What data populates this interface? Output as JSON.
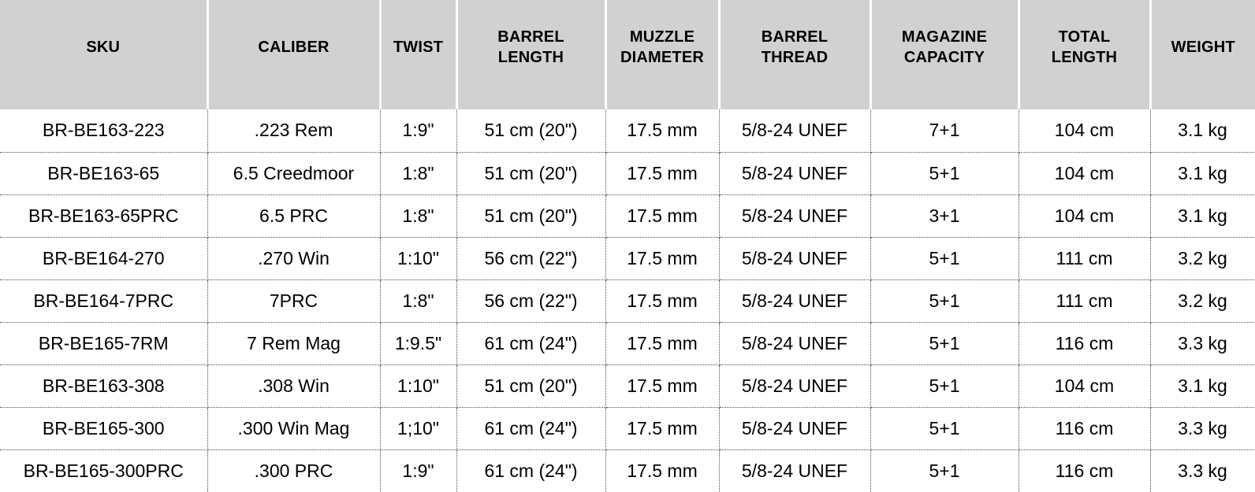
{
  "table": {
    "columns": [
      {
        "id": "sku",
        "label": "SKU"
      },
      {
        "id": "caliber",
        "label": "CALIBER"
      },
      {
        "id": "twist",
        "label": "TWIST"
      },
      {
        "id": "barrel_length",
        "label": "BARREL\nLENGTH"
      },
      {
        "id": "muzzle_diameter",
        "label": "MUZZLE\nDIAMETER"
      },
      {
        "id": "barrel_thread",
        "label": "BARREL\nTHREAD"
      },
      {
        "id": "magazine_capacity",
        "label": "MAGAZINE\nCAPACITY"
      },
      {
        "id": "total_length",
        "label": "TOTAL\nLENGTH"
      },
      {
        "id": "weight",
        "label": "WEIGHT"
      }
    ],
    "rows": [
      [
        "BR-BE163-223",
        ".223 Rem",
        "1:9\"",
        "51 cm (20\")",
        "17.5 mm",
        "5/8-24 UNEF",
        "7+1",
        "104 cm",
        "3.1 kg"
      ],
      [
        "BR-BE163-65",
        "6.5 Creedmoor",
        "1:8\"",
        "51 cm (20\")",
        "17.5 mm",
        "5/8-24 UNEF",
        "5+1",
        "104 cm",
        "3.1 kg"
      ],
      [
        "BR-BE163-65PRC",
        "6.5 PRC",
        "1:8\"",
        "51 cm (20\")",
        "17.5 mm",
        "5/8-24 UNEF",
        "3+1",
        "104 cm",
        "3.1 kg"
      ],
      [
        "BR-BE164-270",
        ".270 Win",
        "1:10\"",
        "56 cm (22\")",
        "17.5 mm",
        "5/8-24 UNEF",
        "5+1",
        "111 cm",
        "3.2 kg"
      ],
      [
        "BR-BE164-7PRC",
        "7PRC",
        "1:8\"",
        "56 cm (22\")",
        "17.5 mm",
        "5/8-24 UNEF",
        "5+1",
        "111 cm",
        "3.2 kg"
      ],
      [
        "BR-BE165-7RM",
        "7 Rem Mag",
        "1:9.5\"",
        "61 cm (24\")",
        "17.5 mm",
        "5/8-24 UNEF",
        "5+1",
        "116 cm",
        "3.3 kg"
      ],
      [
        "BR-BE163-308",
        ".308 Win",
        "1:10\"",
        "51 cm (20\")",
        "17.5 mm",
        "5/8-24 UNEF",
        "5+1",
        "104 cm",
        "3.1 kg"
      ],
      [
        "BR-BE165-300",
        ".300 Win Mag",
        "1;10\"",
        "61 cm (24\")",
        "17.5 mm",
        "5/8-24 UNEF",
        "5+1",
        "116 cm",
        "3.3 kg"
      ],
      [
        "BR-BE165-300PRC",
        ".300 PRC",
        "1:9\"",
        "61 cm (24\")",
        "17.5 mm",
        "5/8-24 UNEF",
        "5+1",
        "116 cm",
        "3.3 kg"
      ]
    ]
  },
  "colors": {
    "header_bg": "#d0d1d0",
    "header_separator": "#ffffff",
    "grid_line": "#4a4a4a",
    "text": "#000000",
    "row_bg": "#ffffff"
  }
}
